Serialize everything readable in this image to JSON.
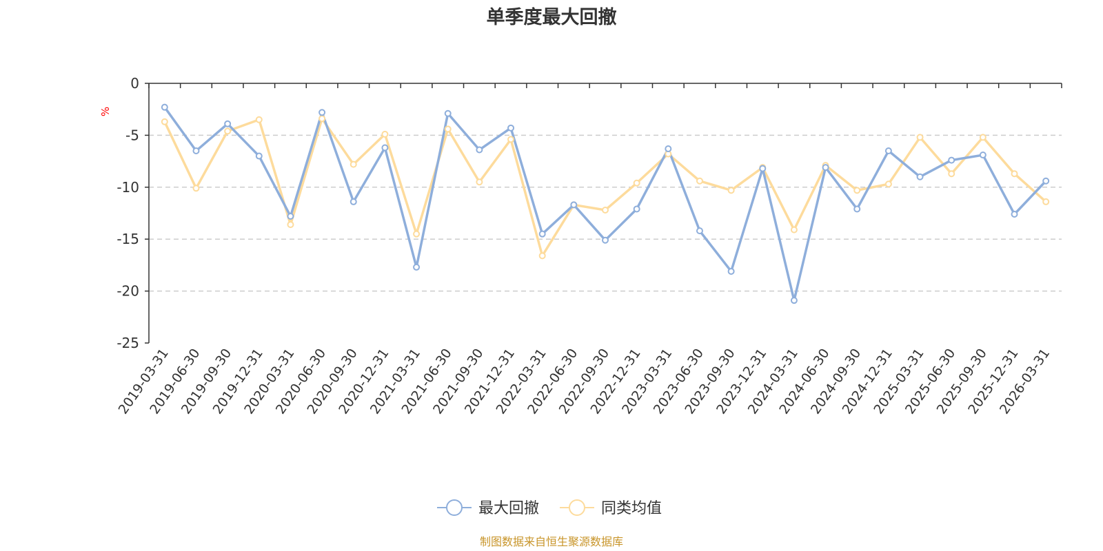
{
  "colors": {
    "series1": "#8eaedb",
    "series2": "#fddb9c",
    "axis": "#333333",
    "grid": "#cccccc",
    "unit": "#ff0000",
    "source": "#c8952a"
  },
  "source_note": "制图数据来自恒生聚源数据库",
  "chart_data": {
    "type": "line",
    "title": "单季度最大回撤",
    "ylabel": "%",
    "xlabel": "",
    "ylim": [
      -25,
      0
    ],
    "yticks": [
      0,
      -5,
      -10,
      -15,
      -20,
      -25
    ],
    "yticks_labels": [
      "0",
      "-5",
      "-10",
      "-15",
      "-20",
      "-25"
    ],
    "grid": true,
    "legend_position": "bottom-center",
    "categories": [
      "2019-03-31",
      "2019-06-30",
      "2019-09-30",
      "2019-12-31",
      "2020-03-31",
      "2020-06-30",
      "2020-09-30",
      "2020-12-31",
      "2021-03-31",
      "2021-06-30",
      "2021-09-30",
      "2021-12-31",
      "2022-03-31",
      "2022-06-30",
      "2022-09-30",
      "2022-12-31",
      "2023-03-31",
      "2023-06-30",
      "2023-09-30",
      "2023-12-31",
      "2024-03-31",
      "2024-06-30",
      "2024-09-30",
      "2024-12-31",
      "2025-03-31",
      "2025-06-30",
      "2025-09-30",
      "2025-12-31",
      "2026-03-31"
    ],
    "series": [
      {
        "name": "最大回撤",
        "values": [
          -2.3,
          -6.5,
          -3.9,
          -7.0,
          -12.8,
          -2.8,
          -11.4,
          -6.2,
          -17.7,
          -2.9,
          -6.4,
          -4.3,
          -14.5,
          -11.7,
          -15.1,
          -12.1,
          -6.3,
          -14.2,
          -18.1,
          -8.2,
          -20.9,
          -8.1,
          -12.1,
          -6.5,
          -9.0,
          -7.4,
          -6.9,
          -12.6,
          -9.4
        ]
      },
      {
        "name": "同类均值",
        "values": [
          -3.7,
          -10.1,
          -4.6,
          -3.5,
          -13.6,
          -3.4,
          -7.8,
          -4.9,
          -14.5,
          -4.4,
          -9.5,
          -5.4,
          -16.6,
          -11.7,
          -12.2,
          -9.6,
          -6.8,
          -9.4,
          -10.3,
          -8.1,
          -14.1,
          -7.9,
          -10.3,
          -9.7,
          -5.2,
          -8.7,
          -5.2,
          -8.7,
          -11.4
        ]
      }
    ]
  }
}
